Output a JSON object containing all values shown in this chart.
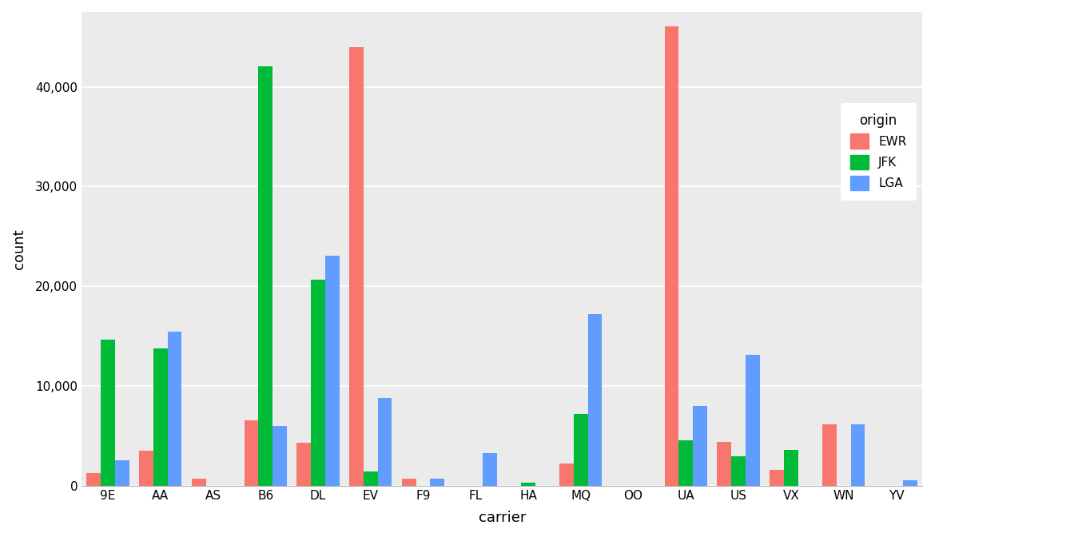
{
  "carriers": [
    "9E",
    "AA",
    "AS",
    "B6",
    "DL",
    "EV",
    "F9",
    "FL",
    "HA",
    "MQ",
    "OO",
    "UA",
    "US",
    "VX",
    "WN",
    "YV"
  ],
  "origins": [
    "EWR",
    "JFK",
    "LGA"
  ],
  "counts": {
    "EWR": {
      "9E": 1268,
      "AA": 3487,
      "AS": 714,
      "B6": 6557,
      "DL": 4342,
      "EV": 43939,
      "F9": 685,
      "FL": 0,
      "HA": 0,
      "MQ": 2276,
      "OO": 6,
      "UA": 46087,
      "US": 4405,
      "VX": 1566,
      "WN": 6188,
      "YV": 0
    },
    "JFK": {
      "9E": 14651,
      "AA": 13783,
      "AS": 0,
      "B6": 42076,
      "DL": 20701,
      "EV": 1408,
      "F9": 0,
      "FL": 0,
      "HA": 342,
      "MQ": 7193,
      "OO": 0,
      "UA": 4534,
      "US": 2995,
      "VX": 3596,
      "WN": 0,
      "YV": 0
    },
    "LGA": {
      "9E": 2541,
      "AA": 15459,
      "AS": 0,
      "B6": 6002,
      "DL": 23067,
      "EV": 8826,
      "F9": 762,
      "FL": 3260,
      "HA": 0,
      "MQ": 17195,
      "OO": 26,
      "UA": 8015,
      "US": 13136,
      "VX": 0,
      "WN": 6188,
      "YV": 601
    }
  },
  "colors": {
    "EWR": "#F8766D",
    "JFK": "#00BA38",
    "LGA": "#619CFF"
  },
  "bar_width": 0.27,
  "background_color": "#EBEBEB",
  "grid_color": "#FFFFFF",
  "xlabel": "carrier",
  "ylabel": "count",
  "ylim": [
    0,
    47500
  ],
  "yticks": [
    0,
    10000,
    20000,
    30000,
    40000
  ],
  "legend_title": "origin"
}
